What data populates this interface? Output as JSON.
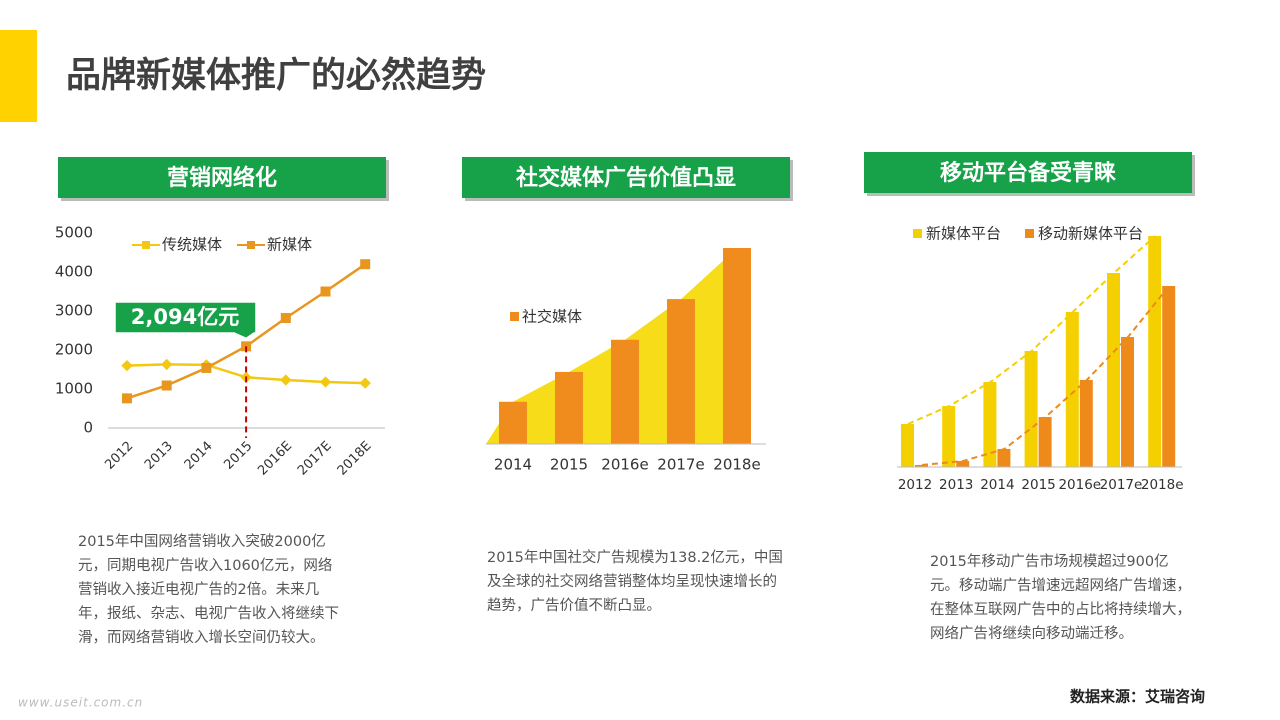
{
  "title": "品牌新媒体推广的必然趋势",
  "source": "数据来源：艾瑞咨询",
  "watermark": "www.useit.com.cn",
  "chart_data": [
    {
      "type": "line",
      "title": "营销网络化",
      "categories": [
        "2012",
        "2013",
        "2014",
        "2015",
        "2016E",
        "2017E",
        "2018E"
      ],
      "series": [
        {
          "name": "传统媒体",
          "color": "#f2c811",
          "values": [
            1600,
            1630,
            1620,
            1300,
            1230,
            1180,
            1150
          ]
        },
        {
          "name": "新媒体",
          "color": "#e8961e",
          "values": [
            760,
            1090,
            1540,
            2094,
            2820,
            3500,
            4200
          ]
        }
      ],
      "ylim": [
        0,
        5000
      ],
      "yticks": [
        0,
        1000,
        2000,
        3000,
        4000,
        5000
      ],
      "annotation": "2,094亿元",
      "description": "2015年中国网络营销收入突破2000亿元，同期电视广告收入1060亿元，网络营销收入接近电视广告的2倍。未来几年，报纸、杂志、电视广告收入将继续下滑，而网络营销收入增长空间仍较大。"
    },
    {
      "type": "bar",
      "title": "社交媒体广告价值凸显",
      "categories": [
        "2014",
        "2015",
        "2016e",
        "2017e",
        "2018e"
      ],
      "series": [
        {
          "name": "社交媒体",
          "color": "#f08c1e",
          "values": [
            81,
            138.2,
            200,
            278,
            376
          ]
        }
      ],
      "area_color": "#f5d800",
      "description": "2015年中国社交广告规模为138.2亿元，中国及全球的社交网络营销整体均呈现快速增长的趋势，广告价值不断凸显。"
    },
    {
      "type": "bar",
      "title": "移动平台备受青睐",
      "categories": [
        "2012",
        "2013",
        "2014",
        "2015",
        "2016e",
        "2017e",
        "2018e"
      ],
      "series": [
        {
          "name": "新媒体平台",
          "color": "#f5d000",
          "values": [
            43,
            61,
            85,
            116,
            155,
            194,
            231
          ]
        },
        {
          "name": "移动新媒体平台",
          "color": "#ee8a1a",
          "values": [
            2,
            6,
            18,
            50,
            87,
            130,
            181
          ]
        }
      ],
      "description": "2015年移动广告市场规模超过900亿元。移动端广告增速远超网络广告增速，在整体互联网广告中的占比将持续增大，网络广告将继续向移动端迁移。"
    }
  ]
}
